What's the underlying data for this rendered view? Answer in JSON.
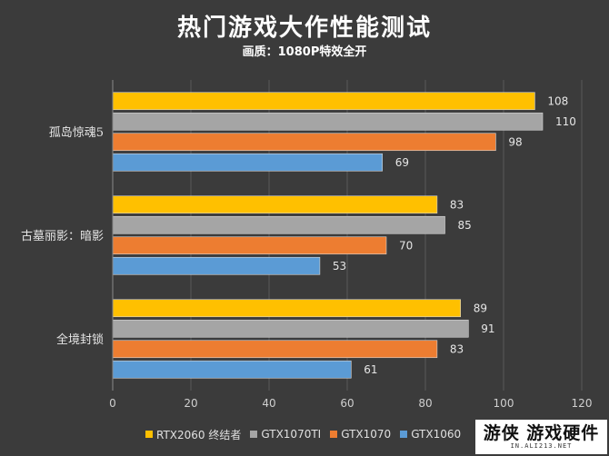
{
  "header": {
    "title": "热门游戏大作性能测试",
    "subtitle": "画质：1080P特效全开"
  },
  "chart_data": {
    "type": "bar",
    "orientation": "horizontal",
    "title": "热门游戏大作性能测试",
    "subtitle": "画质：1080P特效全开",
    "categories": [
      "孤岛惊魂5",
      "古墓丽影：暗影",
      "全境封锁"
    ],
    "series": [
      {
        "name": "RTX2060 终结者",
        "color": "#FFC000",
        "values": [
          108,
          83,
          89
        ]
      },
      {
        "name": "GTX1070TI",
        "color": "#A5A5A5",
        "values": [
          110,
          85,
          91
        ]
      },
      {
        "name": "GTX1070",
        "color": "#ED7D31",
        "values": [
          98,
          70,
          83
        ]
      },
      {
        "name": "GTX1060",
        "color": "#5B9BD5",
        "values": [
          69,
          53,
          61
        ]
      }
    ],
    "xlim": [
      0,
      120
    ],
    "xticks": [
      0,
      20,
      40,
      60,
      80,
      100,
      120
    ],
    "grid": true,
    "legend_position": "bottom",
    "data_labels": true
  },
  "watermark": {
    "main": "游侠 游戏硬件",
    "sub": "IN.ALI213.NET"
  }
}
